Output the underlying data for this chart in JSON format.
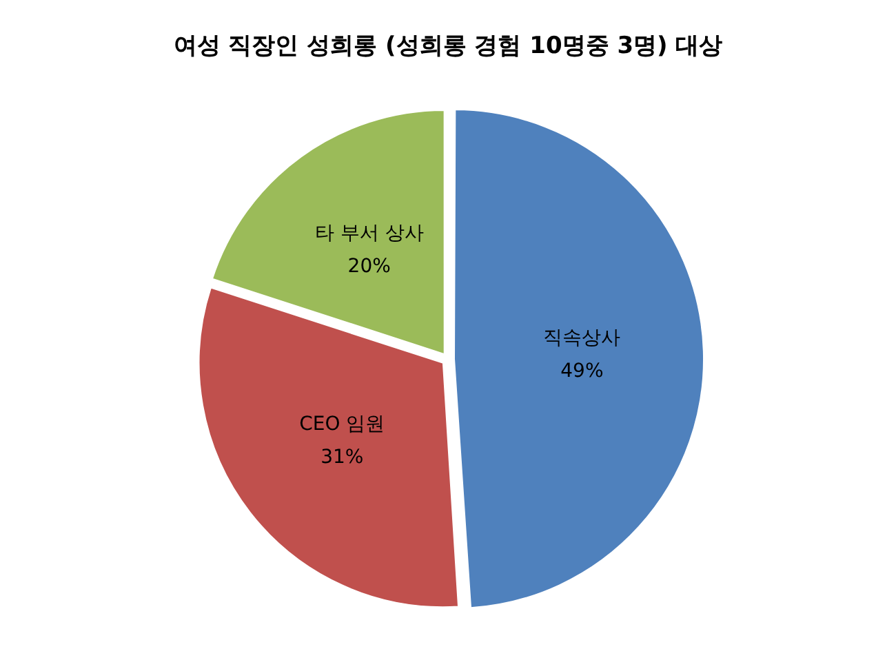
{
  "chart_data": {
    "type": "pie",
    "title": "여성 직장인 성희롱 (성희롱 경험 10명중 3명) 대상",
    "categories": [
      "직속상사",
      "CEO 임원",
      "타 부서 상사"
    ],
    "values": [
      49,
      31,
      20
    ],
    "value_labels": [
      "49%",
      "31%",
      "20%"
    ],
    "colors": [
      "#4f81bd",
      "#c0504d",
      "#9bbb59"
    ],
    "legend": false
  }
}
